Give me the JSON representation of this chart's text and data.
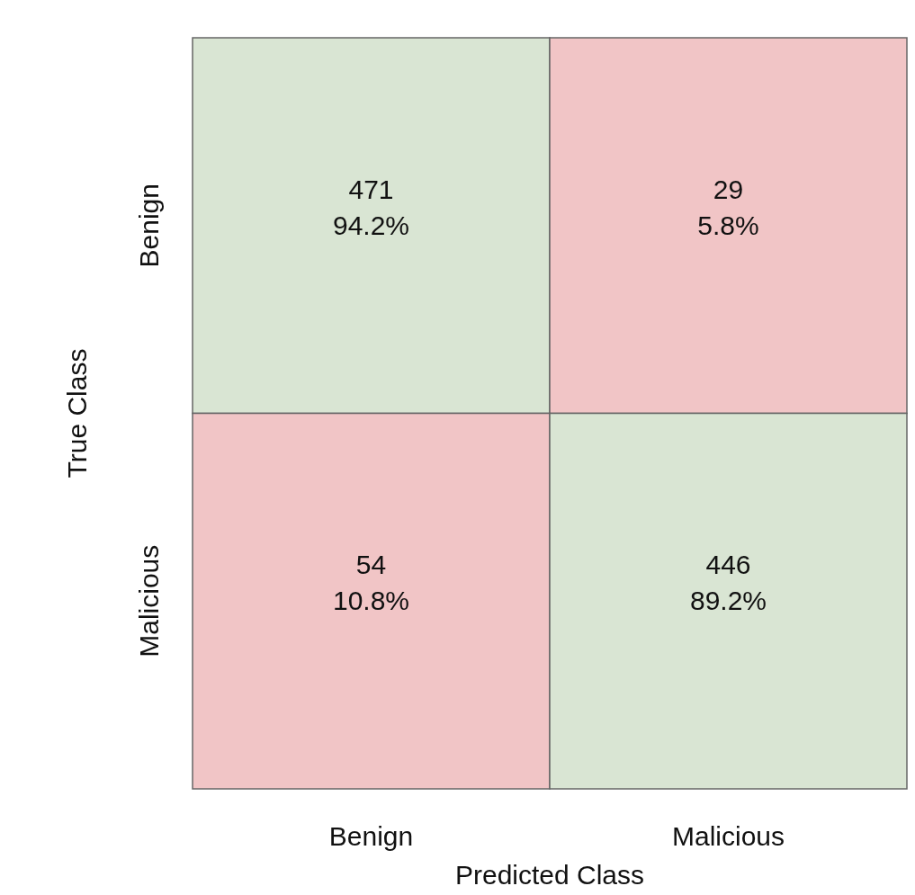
{
  "chart_data": {
    "type": "heatmap",
    "xlabel": "Predicted Class",
    "ylabel": "True Class",
    "categories": [
      "Benign",
      "Malicious"
    ],
    "y_categories": [
      "Benign",
      "Malicious"
    ],
    "cells": [
      [
        471,
        29
      ],
      [
        54,
        446
      ]
    ],
    "data_labels": true,
    "annotations": [
      "94.2%",
      "5.8%",
      "10.8%",
      "89.2%"
    ],
    "colors": [
      [
        "#d9e5d3",
        "#f1c5c6"
      ],
      [
        "#f1c5c6",
        "#d9e5d3"
      ]
    ]
  }
}
